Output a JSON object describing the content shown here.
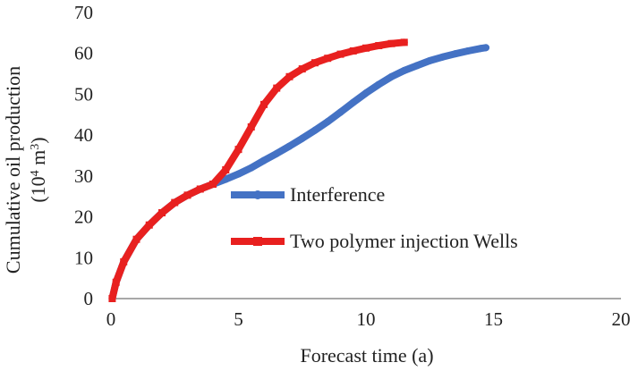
{
  "chart_data": {
    "type": "line",
    "title": "",
    "xlabel": "Forecast time (a)",
    "ylabel_line1": "Cumulative oil production",
    "ylabel_line2_prefix": "(10",
    "ylabel_line2_sup1": "4",
    "ylabel_line2_mid": " m",
    "ylabel_line2_sup2": "3",
    "ylabel_line2_suffix": ")",
    "xlim": [
      0,
      20
    ],
    "ylim": [
      0,
      70
    ],
    "xticks": [
      0,
      5,
      10,
      15,
      20
    ],
    "yticks": [
      0,
      10,
      20,
      30,
      40,
      50,
      60,
      70
    ],
    "xtick_labels": [
      "0",
      "5",
      "10",
      "15",
      "20"
    ],
    "ytick_labels": [
      "0",
      "10",
      "20",
      "30",
      "40",
      "50",
      "60",
      "70"
    ],
    "grid": false,
    "legend_position": "center-right",
    "series": [
      {
        "name": "Interference",
        "color": "#4472C4",
        "marker": "circle",
        "x": [
          0.05,
          0.2,
          0.5,
          1.0,
          1.5,
          2.0,
          2.5,
          3.0,
          3.5,
          4.0,
          4.5,
          5.0,
          5.5,
          6.0,
          6.5,
          7.0,
          7.5,
          8.0,
          8.5,
          9.0,
          9.5,
          10.0,
          10.5,
          11.0,
          11.5,
          12.0,
          12.5,
          13.0,
          13.5,
          14.0,
          14.5,
          14.7
        ],
        "y": [
          0,
          4,
          9,
          14.5,
          18,
          21,
          23.5,
          25.3,
          26.8,
          28,
          29.2,
          30.5,
          32,
          33.8,
          35.5,
          37.3,
          39.2,
          41.2,
          43.3,
          45.6,
          48,
          50.3,
          52.4,
          54.3,
          55.8,
          57,
          58.2,
          59.1,
          59.9,
          60.6,
          61.2,
          61.4
        ]
      },
      {
        "name": "Two polymer injection Wells",
        "color": "#E8201F",
        "marker": "square",
        "x": [
          0.05,
          0.2,
          0.5,
          1.0,
          1.5,
          2.0,
          2.5,
          3.0,
          3.5,
          4.0,
          4.5,
          5.0,
          5.5,
          6.0,
          6.5,
          7.0,
          7.5,
          8.0,
          8.5,
          9.0,
          9.5,
          10.0,
          10.5,
          11.0,
          11.5
        ],
        "y": [
          0,
          4,
          9,
          14.5,
          18,
          21,
          23.5,
          25.3,
          26.8,
          28,
          31.5,
          36.5,
          42,
          47.5,
          51.5,
          54.3,
          56.2,
          57.7,
          58.8,
          59.8,
          60.6,
          61.3,
          61.9,
          62.4,
          62.7
        ]
      }
    ]
  }
}
